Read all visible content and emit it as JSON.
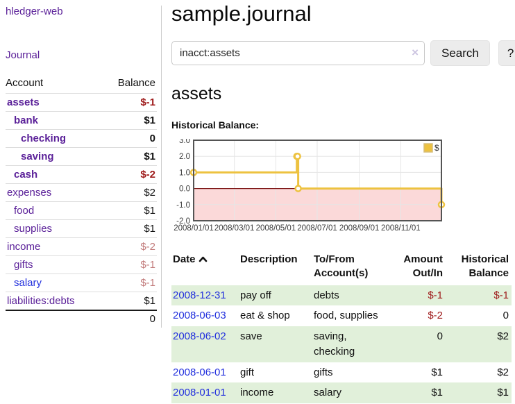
{
  "app": {
    "brand": "hledger-web",
    "nav_journal": "Journal"
  },
  "sidebar": {
    "accounts_table": {
      "col_account": "Account",
      "col_balance": "Balance",
      "rows": [
        {
          "name": "assets",
          "indent": 0,
          "bold": true,
          "balance": "$-1",
          "tone": "neg-strong"
        },
        {
          "name": "bank",
          "indent": 1,
          "bold": true,
          "balance": "$1",
          "tone": "pos"
        },
        {
          "name": "checking",
          "indent": 2,
          "bold": true,
          "balance": "0",
          "tone": "pos"
        },
        {
          "name": "saving",
          "indent": 2,
          "bold": true,
          "balance": "$1",
          "tone": "pos"
        },
        {
          "name": "cash",
          "indent": 1,
          "bold": true,
          "balance": "$-2",
          "tone": "neg-strong"
        },
        {
          "name": "expenses",
          "indent": 0,
          "bold": false,
          "balance": "$2",
          "tone": "pos"
        },
        {
          "name": "food",
          "indent": 1,
          "bold": false,
          "balance": "$1",
          "tone": "pos"
        },
        {
          "name": "supplies",
          "indent": 1,
          "bold": false,
          "balance": "$1",
          "tone": "pos"
        },
        {
          "name": "income",
          "indent": 0,
          "bold": false,
          "balance": "$-2",
          "tone": "neg-soft"
        },
        {
          "name": "gifts",
          "indent": 1,
          "bold": false,
          "balance": "$-1",
          "tone": "neg-soft"
        },
        {
          "name": "salary",
          "indent": 1,
          "bold": false,
          "balance": "$-1",
          "tone": "neg-soft",
          "link_tone": "blue"
        },
        {
          "name": "liabilities:debts",
          "indent": 0,
          "bold": false,
          "balance": "$1",
          "tone": "pos"
        }
      ],
      "total": "0"
    }
  },
  "header": {
    "title": "sample.journal"
  },
  "search": {
    "value": "inacct:assets",
    "clear_label": "×",
    "button": "Search",
    "help_button": "?"
  },
  "account_page": {
    "heading": "assets",
    "chart_label": "Historical Balance:"
  },
  "chart_data": {
    "type": "line",
    "step": true,
    "title": "Historical Balance:",
    "series": [
      {
        "name": "$",
        "points": [
          [
            "2008-01-01",
            1
          ],
          [
            "2008-06-01",
            2
          ],
          [
            "2008-06-02",
            2
          ],
          [
            "2008-06-03",
            0
          ],
          [
            "2008-12-31",
            -1
          ]
        ]
      }
    ],
    "x_range": [
      "2008-01-01",
      "2008-12-31"
    ],
    "ylim": [
      -2,
      3
    ],
    "y_ticks": [
      "3.0",
      "2.0",
      "1.0",
      "0.0",
      "-1.0",
      "-2.0"
    ],
    "x_ticks": [
      "2008/01/01",
      "2008/03/01",
      "2008/05/01",
      "2008/07/01",
      "2008/09/01",
      "2008/11/01"
    ],
    "legend": "$",
    "legend_position": "top-right",
    "grid": true,
    "line_color": "#edc240",
    "marker_fill": "#ffffff",
    "negative_region_fill": "#fbd9d9",
    "zero_line_color": "#7d1616",
    "border_color": "#545454",
    "grid_color": "#e6e6e6",
    "tick_label_color": "#3c3c3c"
  },
  "register": {
    "columns": {
      "date": "Date",
      "description": "Description",
      "tofrom_line1": "To/From",
      "tofrom_line2": "Account(s)",
      "amount_line1": "Amount",
      "amount_line2": "Out/In",
      "balance_line1": "Historical",
      "balance_line2": "Balance"
    },
    "rows": [
      {
        "date": "2008-12-31",
        "description": "pay off",
        "accounts": "debts",
        "amount": "$-1",
        "amount_neg": true,
        "balance": "$-1",
        "balance_neg": true,
        "green": true
      },
      {
        "date": "2008-06-03",
        "description": "eat & shop",
        "accounts": "food, supplies",
        "amount": "$-2",
        "amount_neg": true,
        "balance": "0",
        "balance_neg": false,
        "green": false
      },
      {
        "date": "2008-06-02",
        "description": "save",
        "accounts": "saving, checking",
        "amount": "0",
        "amount_neg": false,
        "balance": "$2",
        "balance_neg": false,
        "green": true
      },
      {
        "date": "2008-06-01",
        "description": "gift",
        "accounts": "gifts",
        "amount": "$1",
        "amount_neg": false,
        "balance": "$2",
        "balance_neg": false,
        "green": false
      },
      {
        "date": "2008-01-01",
        "description": "income",
        "accounts": "salary",
        "amount": "$1",
        "amount_neg": false,
        "balance": "$1",
        "balance_neg": false,
        "green": true
      }
    ]
  },
  "colors": {
    "link_purple": "#5b2199",
    "link_blue": "#2230dd",
    "negative_strong": "#9e1a1a",
    "negative_soft": "#c27b7b",
    "row_green": "#e1f0da",
    "chart_gold": "#edc240",
    "chart_pink": "#fbd9d9"
  }
}
